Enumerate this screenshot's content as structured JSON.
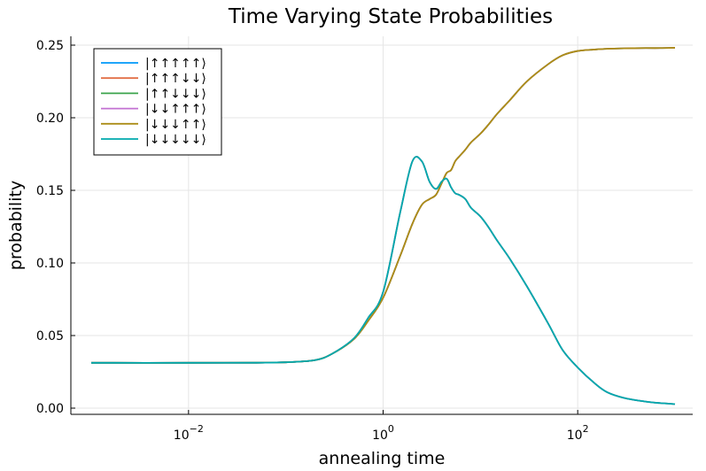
{
  "chart_data": {
    "type": "line",
    "title": "Time Varying State Probabilities",
    "xlabel": "annealing time",
    "ylabel": "probability",
    "xscale": "log10",
    "xlim": [
      0.001,
      1000
    ],
    "ylim": [
      0.0,
      0.25
    ],
    "grid": true,
    "legend_position": "top-left",
    "x_ticks": [
      {
        "value": 0.01,
        "label_base": "10",
        "label_exp": "−2"
      },
      {
        "value": 1,
        "label_base": "10",
        "label_exp": "0"
      },
      {
        "value": 100,
        "label_base": "10",
        "label_exp": "2"
      }
    ],
    "y_ticks": [
      {
        "value": 0.0,
        "label": "0.00"
      },
      {
        "value": 0.05,
        "label": "0.05"
      },
      {
        "value": 0.1,
        "label": "0.10"
      },
      {
        "value": 0.15,
        "label": "0.15"
      },
      {
        "value": 0.2,
        "label": "0.20"
      },
      {
        "value": 0.25,
        "label": "0.25"
      }
    ],
    "x": [
      0.001,
      0.01,
      0.05,
      0.1,
      0.2,
      0.3,
      0.5,
      0.7,
      1.0,
      1.5,
      2.0,
      2.5,
      3.0,
      3.5,
      4.0,
      4.5,
      5.0,
      5.5,
      6.0,
      7.0,
      8.0,
      10,
      12,
      15,
      20,
      30,
      50,
      70,
      100,
      150,
      200,
      300,
      500,
      700,
      1000
    ],
    "series": [
      {
        "name": "|↑↑↑↑↑⟩",
        "color": "#009af9",
        "values": [
          0.0312,
          0.0312,
          0.0313,
          0.0316,
          0.0331,
          0.0375,
          0.0475,
          0.06,
          0.076,
          0.105,
          0.127,
          0.14,
          0.144,
          0.147,
          0.155,
          0.162,
          0.164,
          0.17,
          0.173,
          0.178,
          0.183,
          0.189,
          0.195,
          0.203,
          0.212,
          0.225,
          0.237,
          0.243,
          0.246,
          0.247,
          0.2475,
          0.2478,
          0.248,
          0.248,
          0.2482
        ]
      },
      {
        "name": "|↑↑↑↓↓⟩",
        "color": "#e26f46",
        "values": [
          0.0312,
          0.0312,
          0.0313,
          0.0316,
          0.0331,
          0.0375,
          0.0475,
          0.06,
          0.076,
          0.105,
          0.127,
          0.14,
          0.144,
          0.147,
          0.155,
          0.162,
          0.164,
          0.17,
          0.173,
          0.178,
          0.183,
          0.189,
          0.195,
          0.203,
          0.212,
          0.225,
          0.237,
          0.243,
          0.246,
          0.247,
          0.2475,
          0.2478,
          0.248,
          0.248,
          0.2482
        ]
      },
      {
        "name": "|↑↑↓↓↓⟩",
        "color": "#3da44d",
        "values": [
          0.0312,
          0.0312,
          0.0313,
          0.0316,
          0.0331,
          0.0375,
          0.048,
          0.062,
          0.08,
          0.135,
          0.17,
          0.17,
          0.156,
          0.151,
          0.156,
          0.158,
          0.152,
          0.148,
          0.147,
          0.144,
          0.138,
          0.132,
          0.125,
          0.115,
          0.103,
          0.084,
          0.058,
          0.04,
          0.028,
          0.017,
          0.011,
          0.007,
          0.0045,
          0.0035,
          0.0028
        ]
      },
      {
        "name": "|↓↓↑↑↑⟩",
        "color": "#c271d2",
        "values": [
          0.0312,
          0.0312,
          0.0313,
          0.0316,
          0.0331,
          0.0375,
          0.048,
          0.062,
          0.08,
          0.135,
          0.17,
          0.17,
          0.156,
          0.151,
          0.156,
          0.158,
          0.152,
          0.148,
          0.147,
          0.144,
          0.138,
          0.132,
          0.125,
          0.115,
          0.103,
          0.084,
          0.058,
          0.04,
          0.028,
          0.017,
          0.011,
          0.007,
          0.0045,
          0.0035,
          0.0028
        ]
      },
      {
        "name": "|↓↓↓↑↑⟩",
        "color": "#ac8d18",
        "values": [
          0.0312,
          0.0312,
          0.0313,
          0.0316,
          0.0331,
          0.0375,
          0.0475,
          0.06,
          0.076,
          0.105,
          0.127,
          0.14,
          0.144,
          0.147,
          0.155,
          0.162,
          0.164,
          0.17,
          0.173,
          0.178,
          0.183,
          0.189,
          0.195,
          0.203,
          0.212,
          0.225,
          0.237,
          0.243,
          0.246,
          0.247,
          0.2475,
          0.2478,
          0.248,
          0.248,
          0.2482
        ]
      },
      {
        "name": "|↓↓↓↓↓⟩",
        "color": "#00a9ad",
        "values": [
          0.0312,
          0.0312,
          0.0313,
          0.0316,
          0.0331,
          0.0375,
          0.048,
          0.062,
          0.08,
          0.135,
          0.17,
          0.17,
          0.156,
          0.151,
          0.156,
          0.158,
          0.152,
          0.148,
          0.147,
          0.144,
          0.138,
          0.132,
          0.125,
          0.115,
          0.103,
          0.084,
          0.058,
          0.04,
          0.028,
          0.017,
          0.011,
          0.007,
          0.0045,
          0.0035,
          0.0028
        ]
      }
    ]
  }
}
